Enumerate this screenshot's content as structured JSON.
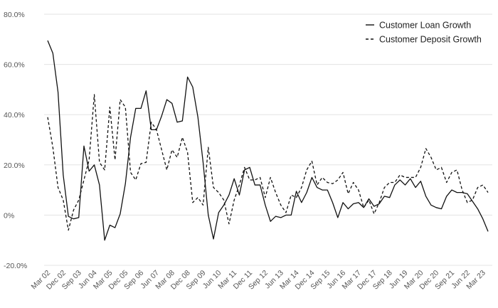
{
  "chart_data": {
    "type": "line",
    "title": "",
    "xlabel": "",
    "ylabel": "",
    "ylim": [
      -20,
      80
    ],
    "y_ticks": [
      -20,
      0,
      20,
      40,
      60,
      80
    ],
    "y_tick_labels": [
      "-20.0%",
      "0%",
      "20.0%",
      "40.0%",
      "60.0%",
      "80.0%"
    ],
    "x_tick_labels": [
      "Mar 02",
      "Dec 02",
      "Sep 03",
      "Jun 04",
      "Mar 05",
      "Dec 05",
      "Sep 06",
      "Jun 07",
      "Mar 08",
      "Dec 08",
      "Sep 09",
      "Jun 10",
      "Mar 11",
      "Dec 11",
      "Sep 12",
      "Jun 13",
      "Mar 14",
      "Dec 14",
      "Sep 15",
      "Jun 16",
      "Mar 17",
      "Dec 17",
      "Sep 18",
      "Jun 19",
      "Mar 20",
      "Dec 20",
      "Sep 21",
      "Jun 22",
      "Mar 23"
    ],
    "x_ticks": [
      "2002-03",
      "2002-12",
      "2003-09",
      "2004-06",
      "2005-03",
      "2005-12",
      "2006-09",
      "2007-06",
      "2008-03",
      "2008-12",
      "2009-09",
      "2010-06",
      "2011-03",
      "2011-12",
      "2012-09",
      "2013-06",
      "2014-03",
      "2014-12",
      "2015-09",
      "2016-06",
      "2017-03",
      "2017-12",
      "2018-09",
      "2019-06",
      "2020-03",
      "2020-12",
      "2021-09",
      "2022-06",
      "2023-03"
    ],
    "grid": "horizontal",
    "legend_position": "top-right",
    "series": [
      {
        "name": "Customer Loan Growth",
        "style": "solid",
        "color": "#111111",
        "x": [
          "2002-03",
          "2002-06",
          "2002-09",
          "2002-12",
          "2003-03",
          "2003-06",
          "2003-09",
          "2003-12",
          "2004-03",
          "2004-06",
          "2004-09",
          "2004-12",
          "2005-03",
          "2005-06",
          "2005-09",
          "2005-12",
          "2006-03",
          "2006-06",
          "2006-09",
          "2006-12",
          "2007-03",
          "2007-06",
          "2007-09",
          "2007-12",
          "2008-03",
          "2008-06",
          "2008-09",
          "2008-12",
          "2009-03",
          "2009-06",
          "2009-09",
          "2009-12",
          "2010-03",
          "2010-06",
          "2010-09",
          "2010-12",
          "2011-03",
          "2011-06",
          "2011-09",
          "2011-12",
          "2012-03",
          "2012-06",
          "2012-09",
          "2012-12",
          "2013-03",
          "2013-06",
          "2013-09",
          "2013-12",
          "2014-03",
          "2014-06",
          "2014-09",
          "2014-12",
          "2015-03",
          "2015-06",
          "2015-09",
          "2015-12",
          "2016-03",
          "2016-06",
          "2016-09",
          "2016-12",
          "2017-03",
          "2017-06",
          "2017-09",
          "2017-12",
          "2018-03",
          "2018-06",
          "2018-09",
          "2018-12",
          "2019-03",
          "2019-06",
          "2019-09",
          "2019-12",
          "2020-03",
          "2020-06",
          "2020-09",
          "2020-12",
          "2021-03",
          "2021-06",
          "2021-09",
          "2021-12",
          "2022-03",
          "2022-06",
          "2022-09",
          "2022-12",
          "2023-03",
          "2023-06"
        ],
        "values": [
          69.5,
          64.5,
          49,
          16,
          -0.5,
          -1.5,
          -1,
          27.5,
          17.5,
          20,
          12,
          -10,
          -4,
          -5,
          0.5,
          12.5,
          31,
          42.5,
          42.5,
          49.5,
          34,
          34,
          39.5,
          46,
          44.5,
          37,
          37.5,
          55,
          51,
          39,
          21,
          0,
          -9.5,
          1,
          4,
          8,
          14.5,
          8,
          18,
          19,
          12,
          12,
          4,
          -2.5,
          -0.5,
          -1,
          0,
          0,
          9.5,
          5,
          9,
          15,
          11,
          10,
          10,
          5,
          -1,
          5,
          2.5,
          4.5,
          5,
          3,
          6.5,
          3.5,
          4.5,
          7.5,
          7,
          12,
          14,
          12,
          14.5,
          11,
          13.5,
          7.5,
          4,
          3,
          2.5,
          7.5,
          10,
          9,
          9,
          8.5,
          5.5,
          2.5,
          -1.5,
          -6.5
        ]
      },
      {
        "name": "Customer Deposit Growth",
        "style": "dashed",
        "color": "#111111",
        "x": [
          "2002-03",
          "2002-06",
          "2002-09",
          "2002-12",
          "2003-03",
          "2003-06",
          "2003-09",
          "2003-12",
          "2004-03",
          "2004-06",
          "2004-09",
          "2004-12",
          "2005-03",
          "2005-06",
          "2005-09",
          "2005-12",
          "2006-03",
          "2006-06",
          "2006-09",
          "2006-12",
          "2007-03",
          "2007-06",
          "2007-09",
          "2007-12",
          "2008-03",
          "2008-06",
          "2008-09",
          "2008-12",
          "2009-03",
          "2009-06",
          "2009-09",
          "2009-12",
          "2010-03",
          "2010-06",
          "2010-09",
          "2010-12",
          "2011-03",
          "2011-06",
          "2011-09",
          "2011-12",
          "2012-03",
          "2012-06",
          "2012-09",
          "2012-12",
          "2013-03",
          "2013-06",
          "2013-09",
          "2013-12",
          "2014-03",
          "2014-06",
          "2014-09",
          "2014-12",
          "2015-03",
          "2015-06",
          "2015-09",
          "2015-12",
          "2016-03",
          "2016-06",
          "2016-09",
          "2016-12",
          "2017-03",
          "2017-06",
          "2017-09",
          "2017-12",
          "2018-03",
          "2018-06",
          "2018-09",
          "2018-12",
          "2019-03",
          "2019-06",
          "2019-09",
          "2019-12",
          "2020-03",
          "2020-06",
          "2020-09",
          "2020-12",
          "2021-03",
          "2021-06",
          "2021-09",
          "2021-12",
          "2022-03",
          "2022-06",
          "2022-09",
          "2022-12",
          "2023-03",
          "2023-06"
        ],
        "values": [
          39,
          27,
          11,
          6,
          -6,
          2,
          6,
          14,
          22,
          48,
          21,
          18,
          43,
          22,
          46,
          43,
          17,
          14,
          20.5,
          21,
          37,
          34,
          26,
          18,
          26,
          23,
          31,
          25,
          5,
          7,
          4,
          27,
          11,
          9,
          6,
          -3.5,
          6,
          12,
          19,
          14,
          14,
          15,
          7,
          15,
          9,
          4,
          1,
          8,
          7,
          11,
          18,
          21.5,
          12,
          15,
          13,
          12.5,
          14,
          17,
          8.5,
          13,
          10,
          3,
          6,
          0.5,
          5,
          11,
          13,
          13,
          16,
          15,
          15,
          15,
          19,
          26.5,
          23,
          18,
          19,
          13,
          17,
          18,
          10,
          5,
          6,
          11,
          12,
          9
        ]
      }
    ]
  }
}
